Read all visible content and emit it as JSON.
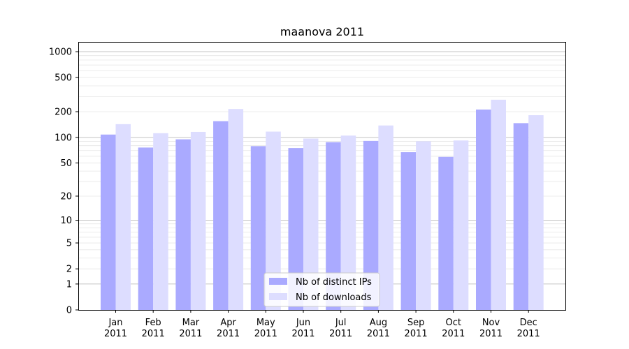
{
  "chart_data": {
    "type": "bar",
    "title": "maanova 2011",
    "xlabel": "",
    "ylabel": "",
    "yscale": "log(1+y)",
    "ylim": [
      0,
      1300
    ],
    "yticks": [
      {
        "value": 0,
        "label": "0"
      },
      {
        "value": 1,
        "label": "1"
      },
      {
        "value": 2,
        "label": "2"
      },
      {
        "value": 5,
        "label": "5"
      },
      {
        "value": 10,
        "label": "10"
      },
      {
        "value": 20,
        "label": "20"
      },
      {
        "value": 50,
        "label": "50"
      },
      {
        "value": 100,
        "label": "100"
      },
      {
        "value": 200,
        "label": "200"
      },
      {
        "value": 500,
        "label": "500"
      },
      {
        "value": 1000,
        "label": "1000"
      }
    ],
    "major_grid": [
      1,
      10,
      100,
      1000
    ],
    "categories": [
      {
        "month": "Jan",
        "year": "2011"
      },
      {
        "month": "Feb",
        "year": "2011"
      },
      {
        "month": "Mar",
        "year": "2011"
      },
      {
        "month": "Apr",
        "year": "2011"
      },
      {
        "month": "May",
        "year": "2011"
      },
      {
        "month": "Jun",
        "year": "2011"
      },
      {
        "month": "Jul",
        "year": "2011"
      },
      {
        "month": "Aug",
        "year": "2011"
      },
      {
        "month": "Sep",
        "year": "2011"
      },
      {
        "month": "Oct",
        "year": "2011"
      },
      {
        "month": "Nov",
        "year": "2011"
      },
      {
        "month": "Dec",
        "year": "2011"
      }
    ],
    "series": [
      {
        "name": "Nb of distinct IPs",
        "color": "#aaaaff",
        "values": [
          108,
          76,
          95,
          155,
          79,
          75,
          88,
          91,
          67,
          59,
          212,
          147
        ]
      },
      {
        "name": "Nb of downloads",
        "color": "#ddddff",
        "values": [
          143,
          112,
          116,
          215,
          117,
          97,
          105,
          138,
          90,
          92,
          276,
          182
        ]
      }
    ],
    "legend_position": "lower-center",
    "grid": true
  }
}
